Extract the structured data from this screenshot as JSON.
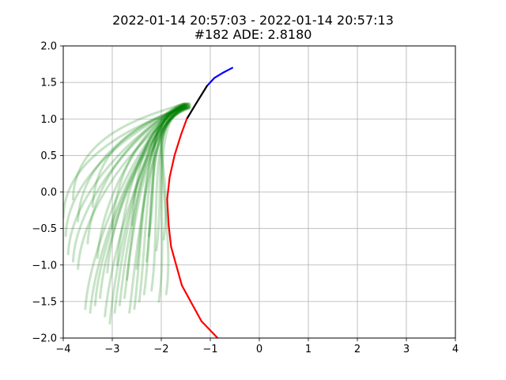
{
  "chart_data": {
    "type": "line",
    "title_lines": [
      "2022-01-14 20:57:03 - 2022-01-14 20:57:13",
      "#182 ADE: 2.8180"
    ],
    "xlabel": "",
    "ylabel": "",
    "xlim": [
      -4,
      4
    ],
    "ylim": [
      -2,
      2
    ],
    "x_ticks": [
      -4,
      -3,
      -2,
      -1,
      0,
      1,
      2,
      3,
      4
    ],
    "y_ticks": [
      -2.0,
      -1.5,
      -1.0,
      -0.5,
      0.0,
      0.5,
      1.0,
      1.5,
      2.0
    ],
    "x_tick_labels": [
      "−4",
      "−3",
      "−2",
      "−1",
      "0",
      "1",
      "2",
      "3",
      "4"
    ],
    "y_tick_labels": [
      "−2.0",
      "−1.5",
      "−1.0",
      "−0.5",
      "0.0",
      "0.5",
      "1.0",
      "1.5",
      "2.0"
    ],
    "grid": true,
    "colors": {
      "history": "#0000ff",
      "recent": "#000000",
      "ground_truth": "#ff0000",
      "predictions": "#008000"
    },
    "series": [
      {
        "role": "history",
        "color": "#0000ff",
        "points": [
          [
            -0.55,
            1.7
          ],
          [
            -0.75,
            1.63
          ],
          [
            -0.92,
            1.56
          ],
          [
            -1.07,
            1.45
          ]
        ]
      },
      {
        "role": "recent",
        "color": "#000000",
        "points": [
          [
            -1.07,
            1.45
          ],
          [
            -1.3,
            1.2
          ],
          [
            -1.48,
            1.0
          ]
        ]
      },
      {
        "role": "ground_truth",
        "color": "#ff0000",
        "points": [
          [
            -1.48,
            1.0
          ],
          [
            -1.6,
            0.78
          ],
          [
            -1.73,
            0.5
          ],
          [
            -1.83,
            0.2
          ],
          [
            -1.88,
            -0.1
          ],
          [
            -1.85,
            -0.45
          ],
          [
            -1.8,
            -0.75
          ],
          [
            -1.58,
            -1.28
          ],
          [
            -1.18,
            -1.77
          ],
          [
            -0.85,
            -2.0
          ]
        ]
      }
    ],
    "predictions": [
      {
        "end": [
          -4.0,
          -0.35
        ],
        "bend": 0.1
      },
      {
        "end": [
          -3.95,
          -0.6
        ],
        "bend": 0.15
      },
      {
        "end": [
          -3.9,
          -0.85
        ],
        "bend": 0.2
      },
      {
        "end": [
          -3.8,
          -0.95
        ],
        "bend": 0.25
      },
      {
        "end": [
          -3.7,
          -1.05
        ],
        "bend": 0.3
      },
      {
        "end": [
          -3.55,
          -1.6
        ],
        "bend": 0.35
      },
      {
        "end": [
          -3.45,
          -1.65
        ],
        "bend": 0.4
      },
      {
        "end": [
          -3.35,
          -1.55
        ],
        "bend": 0.35
      },
      {
        "end": [
          -3.25,
          -1.45
        ],
        "bend": 0.45
      },
      {
        "end": [
          -3.15,
          -1.7
        ],
        "bend": 0.5
      },
      {
        "end": [
          -3.05,
          -1.8
        ],
        "bend": 0.45
      },
      {
        "end": [
          -2.95,
          -1.65
        ],
        "bend": 0.55
      },
      {
        "end": [
          -2.85,
          -1.55
        ],
        "bend": 0.55
      },
      {
        "end": [
          -2.75,
          -1.45
        ],
        "bend": 0.6
      },
      {
        "end": [
          -2.65,
          -1.65
        ],
        "bend": 0.6
      },
      {
        "end": [
          -2.55,
          -1.6
        ],
        "bend": 0.65
      },
      {
        "end": [
          -2.45,
          -1.5
        ],
        "bend": 0.65
      },
      {
        "end": [
          -2.35,
          -1.4
        ],
        "bend": 0.7
      },
      {
        "end": [
          -2.2,
          -1.35
        ],
        "bend": 0.7
      },
      {
        "end": [
          -2.05,
          -1.5
        ],
        "bend": 0.75
      },
      {
        "end": [
          -1.9,
          -1.4
        ],
        "bend": 0.75
      },
      {
        "end": [
          -3.7,
          -0.4
        ],
        "bend": 0.2
      },
      {
        "end": [
          -3.5,
          -0.7
        ],
        "bend": 0.3
      },
      {
        "end": [
          -3.3,
          -0.9
        ],
        "bend": 0.35
      },
      {
        "end": [
          -3.1,
          -1.1
        ],
        "bend": 0.4
      },
      {
        "end": [
          -2.9,
          -1.0
        ],
        "bend": 0.45
      },
      {
        "end": [
          -2.7,
          -1.2
        ],
        "bend": 0.5
      },
      {
        "end": [
          -2.5,
          -1.05
        ],
        "bend": 0.55
      },
      {
        "end": [
          -2.3,
          -0.95
        ],
        "bend": 0.6
      },
      {
        "end": [
          -2.1,
          -0.8
        ],
        "bend": 0.65
      },
      {
        "end": [
          -1.95,
          -0.65
        ],
        "bend": 0.7
      },
      {
        "end": [
          -2.25,
          -0.6
        ],
        "bend": 0.75
      },
      {
        "end": [
          -2.6,
          -0.45
        ],
        "bend": 0.4
      },
      {
        "end": [
          -3.0,
          -0.5
        ],
        "bend": 0.3
      },
      {
        "end": [
          -3.4,
          -0.2
        ],
        "bend": 0.2
      },
      {
        "end": [
          -3.8,
          -0.1
        ],
        "bend": 0.1
      }
    ]
  }
}
